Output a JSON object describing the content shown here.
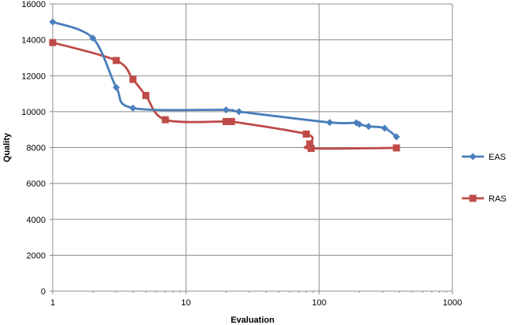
{
  "chart_data": {
    "type": "line",
    "xscale": "log",
    "xlabel": "Evaluation",
    "ylabel": "Quality",
    "xlim": [
      1,
      1000
    ],
    "ylim": [
      0,
      16000
    ],
    "x_ticks": [
      1,
      10,
      100,
      1000
    ],
    "x_tick_labels": [
      "1",
      "10",
      "100",
      "1000"
    ],
    "y_ticks": [
      0,
      2000,
      4000,
      6000,
      8000,
      10000,
      12000,
      14000,
      16000
    ],
    "y_tick_labels": [
      "0",
      "2000",
      "4000",
      "6000",
      "8000",
      "10000",
      "12000",
      "14000",
      "16000"
    ],
    "grid": true,
    "legend_position": "right",
    "series": [
      {
        "name": "EAS",
        "color": "#4a7ebb",
        "marker": "diamond",
        "x": [
          1,
          2,
          3,
          4,
          20,
          25,
          120,
          190,
          200,
          235,
          310,
          380
        ],
        "y": [
          15000,
          14100,
          11350,
          10200,
          10100,
          10000,
          9400,
          9380,
          9300,
          9180,
          9080,
          8600
        ]
      },
      {
        "name": "RAS",
        "color": "#be4b48",
        "marker": "square",
        "x": [
          1,
          3,
          4,
          5,
          7,
          20,
          22,
          80,
          85,
          87,
          380
        ],
        "y": [
          13850,
          12850,
          11800,
          10900,
          9550,
          9450,
          9450,
          8750,
          8200,
          7950,
          7980
        ]
      }
    ]
  }
}
